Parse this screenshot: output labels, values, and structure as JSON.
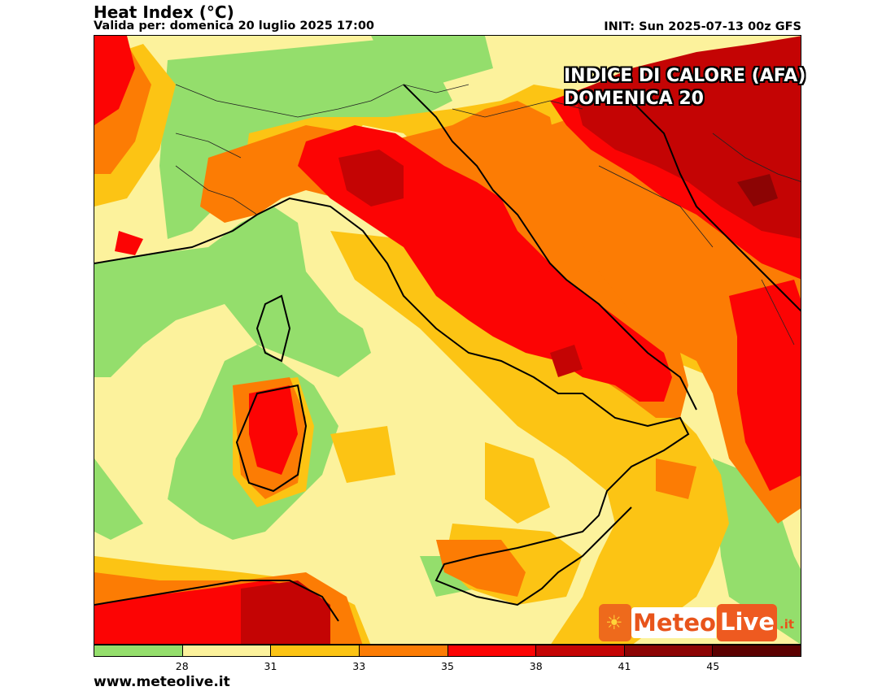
{
  "header": {
    "title": "Heat Index (°C)",
    "valid": "Valida per: domenica 20 luglio 2025 17:00",
    "init": "INIT: Sun 2025-07-13 00z GFS"
  },
  "overlay": {
    "line1": "INDICE DI CALORE (AFA)",
    "line2": "DOMENICA 20"
  },
  "logo": {
    "meteo": "Meteo",
    "live": "Live",
    "tld": ".it",
    "sun_icon": "sun-icon"
  },
  "legend": {
    "colors": [
      "#94de6c",
      "#fcf29c",
      "#fcc414",
      "#fc7c04",
      "#fc0404",
      "#c40404",
      "#8c0404",
      "#5c0000"
    ],
    "ticks": [
      "28",
      "31",
      "33",
      "35",
      "38",
      "41",
      "45"
    ]
  },
  "footer": {
    "site": "www.meteolive.it"
  }
}
